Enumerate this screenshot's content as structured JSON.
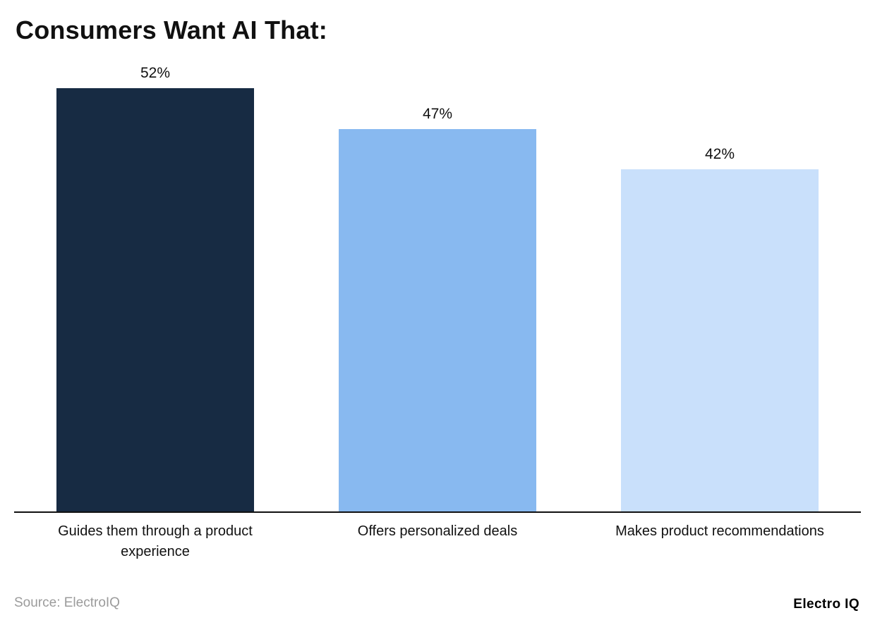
{
  "title": "Consumers Want AI That:",
  "source": "Source: ElectroIQ",
  "brand": "Electro IQ",
  "chart_data": {
    "type": "bar",
    "title": "Consumers Want AI That:",
    "categories": [
      "Guides them through a product experience",
      "Offers personalized deals",
      "Makes product recommendations"
    ],
    "values": [
      52,
      47,
      42
    ],
    "labels": [
      "52%",
      "47%",
      "42%"
    ],
    "colors": [
      "#172b43",
      "#88b9f0",
      "#c9e0fb"
    ],
    "xlabel": "",
    "ylabel": "",
    "ylim": [
      0,
      55
    ],
    "grid": false,
    "legend": false,
    "value_label_position": "above-bar"
  }
}
